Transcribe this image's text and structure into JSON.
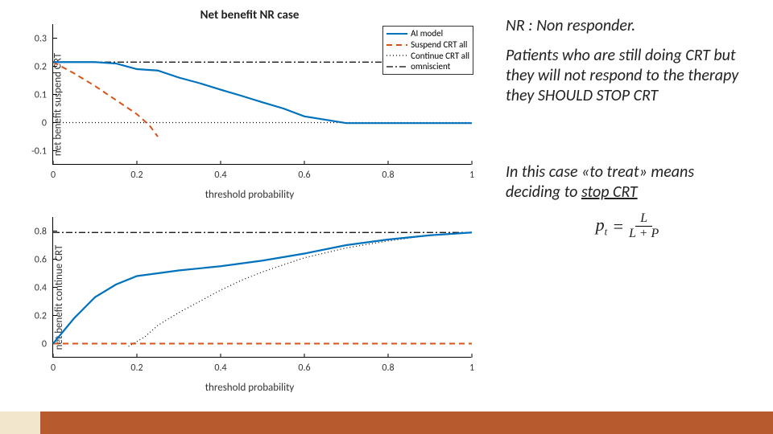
{
  "colors": {
    "ai_model": "#0072bd",
    "suspend_all": "#d95319",
    "continue_all": "#000000",
    "omniscient": "#000000",
    "axis": "#000000",
    "text": "#333333",
    "footer_accent": "#b75a2d",
    "footer_light": "#f2e6cc"
  },
  "chart_title": "Net benefit NR case",
  "legend": {
    "items": [
      {
        "label": "AI model",
        "color": "#0072bd",
        "dash": "solid",
        "width": 2
      },
      {
        "label": "Suspend CRT all",
        "color": "#d95319",
        "dash": "7,5",
        "width": 2
      },
      {
        "label": "Continue CRT all",
        "color": "#000000",
        "dash": "1,3",
        "width": 1.2
      },
      {
        "label": "omniscient",
        "color": "#000000",
        "dash": "8,3,2,3",
        "width": 1.2
      }
    ]
  },
  "top_chart": {
    "ylabel": "net benefit suspend CRT",
    "xlabel": "threshold probability",
    "xlim": [
      0,
      1
    ],
    "ylim": [
      -0.15,
      0.35
    ],
    "xticks": [
      0,
      0.2,
      0.4,
      0.6,
      0.8,
      1
    ],
    "yticks": [
      -0.1,
      0,
      0.1,
      0.2,
      0.3
    ],
    "series": {
      "ai_model": {
        "x": [
          0,
          0.05,
          0.1,
          0.15,
          0.2,
          0.25,
          0.3,
          0.35,
          0.4,
          0.45,
          0.5,
          0.55,
          0.6,
          0.7,
          0.8,
          0.9,
          1.0
        ],
        "y": [
          0.215,
          0.215,
          0.215,
          0.21,
          0.19,
          0.185,
          0.16,
          0.14,
          0.117,
          0.095,
          0.072,
          0.05,
          0.022,
          -0.002,
          -0.002,
          -0.002,
          -0.002
        ]
      },
      "suspend_all": {
        "x": [
          0,
          0.05,
          0.1,
          0.15,
          0.2,
          0.23,
          0.25
        ],
        "y": [
          0.215,
          0.175,
          0.13,
          0.08,
          0.03,
          -0.01,
          -0.05
        ]
      },
      "continue_all": {
        "x": [
          0,
          1.0
        ],
        "y": [
          0,
          0
        ]
      },
      "omniscient": {
        "x": [
          0,
          1.0
        ],
        "y": [
          0.215,
          0.215
        ]
      }
    }
  },
  "bottom_chart": {
    "ylabel": "net benefit continue CRT",
    "xlabel": "threshold probability",
    "xlim": [
      0,
      1
    ],
    "ylim": [
      -0.1,
      0.9
    ],
    "xticks": [
      0,
      0.2,
      0.4,
      0.6,
      0.8,
      1
    ],
    "yticks": [
      0,
      0.2,
      0.4,
      0.6,
      0.8
    ],
    "series": {
      "ai_model": {
        "x": [
          0,
          0.05,
          0.1,
          0.15,
          0.2,
          0.25,
          0.3,
          0.4,
          0.5,
          0.6,
          0.7,
          0.8,
          0.9,
          1.0
        ],
        "y": [
          0,
          0.18,
          0.33,
          0.42,
          0.48,
          0.5,
          0.52,
          0.55,
          0.59,
          0.64,
          0.7,
          0.74,
          0.77,
          0.79
        ]
      },
      "suspend_all": {
        "x": [
          0,
          1.0
        ],
        "y": [
          0,
          0
        ]
      },
      "continue_all": {
        "x": [
          0.18,
          0.22,
          0.25,
          0.3,
          0.35,
          0.4,
          0.45,
          0.5,
          0.55,
          0.6,
          0.7,
          0.8,
          0.9,
          1.0
        ],
        "y": [
          -0.02,
          0.05,
          0.13,
          0.22,
          0.3,
          0.38,
          0.45,
          0.51,
          0.56,
          0.61,
          0.68,
          0.73,
          0.77,
          0.79
        ]
      },
      "omniscient": {
        "x": [
          0,
          1.0
        ],
        "y": [
          0.79,
          0.79
        ]
      }
    }
  },
  "text": {
    "line1": "NR : Non responder.",
    "line2_a": "Patients who are still doing CRT but they will not respond to the therapy they ",
    "line2_b": "SHOULD STOP CRT",
    "line3_a": "In this case «to treat» means deciding to ",
    "line3_b": "stop CRT",
    "formula_lhs": "p",
    "formula_sub": "t",
    "formula_eq": "=",
    "formula_num": "L",
    "formula_den": "L + P"
  }
}
